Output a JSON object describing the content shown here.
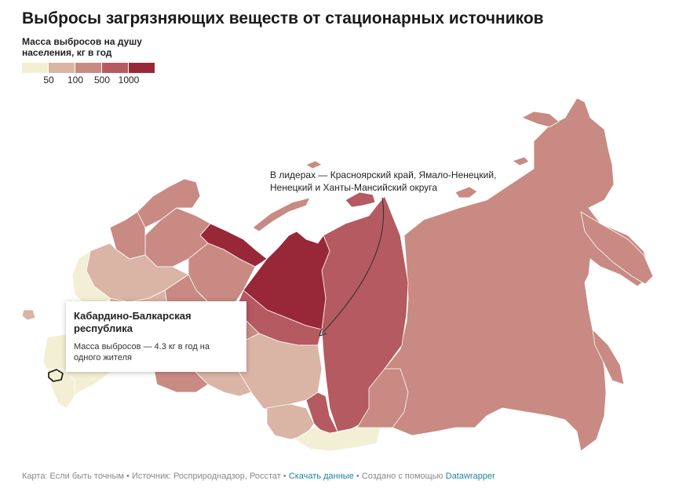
{
  "title": "Выбросы загрязняющих веществ от стационарных источников",
  "legend": {
    "title": "Масса выбросов на душу населения, кг в год",
    "colors": [
      "#f3efd4",
      "#dab4a4",
      "#c88a82",
      "#b55a60",
      "#982838"
    ],
    "ticks": [
      "50",
      "100",
      "500",
      "1000"
    ]
  },
  "annotation": {
    "text": "В лидерах — Красноярский край, Ямало-Ненецкий, Ненецкий и Ханты-Мансийский округа"
  },
  "tooltip": {
    "title": "Кабардино-Балкарская республика",
    "body": "Масса выбросов — 4.3 кг в год на одного жителя"
  },
  "footer": {
    "map_label": "Карта: Если быть точным",
    "source_label": "Источник: Росприроднадзор, Росстат",
    "download_link": "Скачать данные",
    "created_label": "Создано с помощью",
    "tool_link": "Datawrapper",
    "separator": "•"
  }
}
